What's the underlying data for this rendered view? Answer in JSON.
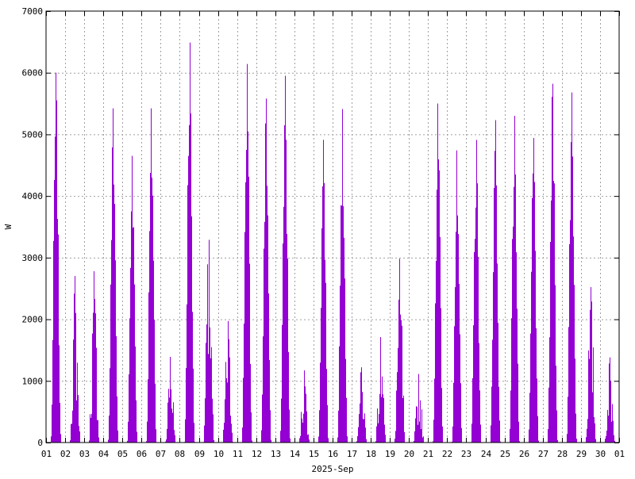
{
  "chart_data": {
    "type": "area",
    "title": "",
    "xlabel": "2025-Sep",
    "ylabel": "W",
    "ylim": [
      0,
      7000
    ],
    "yticks": [
      0,
      1000,
      2000,
      3000,
      4000,
      5000,
      6000,
      7000
    ],
    "xlim": [
      "2025-09-01",
      "2025-10-01"
    ],
    "xtick_labels": [
      "01",
      "02",
      "03",
      "04",
      "05",
      "06",
      "07",
      "08",
      "09",
      "10",
      "11",
      "12",
      "13",
      "14",
      "15",
      "16",
      "17",
      "18",
      "19",
      "20",
      "21",
      "22",
      "23",
      "24",
      "25",
      "26",
      "27",
      "28",
      "29",
      "30",
      "01"
    ],
    "grid": true,
    "legend": "none",
    "series": [
      {
        "color": "#9400d3",
        "peaks": [
          {
            "date": "2025-09-01",
            "value": 6000
          },
          {
            "date": "2025-09-02",
            "value": 2700
          },
          {
            "date": "2025-09-03",
            "value": 2780
          },
          {
            "date": "2025-09-04",
            "value": 5420
          },
          {
            "date": "2025-09-05",
            "value": 4650
          },
          {
            "date": "2025-09-06",
            "value": 5420
          },
          {
            "date": "2025-09-07",
            "value": 1390
          },
          {
            "date": "2025-09-08",
            "value": 6490
          },
          {
            "date": "2025-09-09",
            "value": 3290
          },
          {
            "date": "2025-09-10",
            "value": 1970
          },
          {
            "date": "2025-09-11",
            "value": 6140
          },
          {
            "date": "2025-09-12",
            "value": 5580
          },
          {
            "date": "2025-09-13",
            "value": 5950
          },
          {
            "date": "2025-09-14",
            "value": 1170
          },
          {
            "date": "2025-09-15",
            "value": 4910
          },
          {
            "date": "2025-09-16",
            "value": 5410
          },
          {
            "date": "2025-09-17",
            "value": 1220
          },
          {
            "date": "2025-09-18",
            "value": 1710
          },
          {
            "date": "2025-09-19",
            "value": 2980
          },
          {
            "date": "2025-09-20",
            "value": 1110
          },
          {
            "date": "2025-09-21",
            "value": 5500
          },
          {
            "date": "2025-09-22",
            "value": 4740
          },
          {
            "date": "2025-09-23",
            "value": 4910
          },
          {
            "date": "2025-09-24",
            "value": 5230
          },
          {
            "date": "2025-09-25",
            "value": 5300
          },
          {
            "date": "2025-09-26",
            "value": 4940
          },
          {
            "date": "2025-09-27",
            "value": 5820
          },
          {
            "date": "2025-09-28",
            "value": 5680
          },
          {
            "date": "2025-09-29",
            "value": 2520
          },
          {
            "date": "2025-09-30",
            "value": 1380
          }
        ]
      }
    ]
  }
}
